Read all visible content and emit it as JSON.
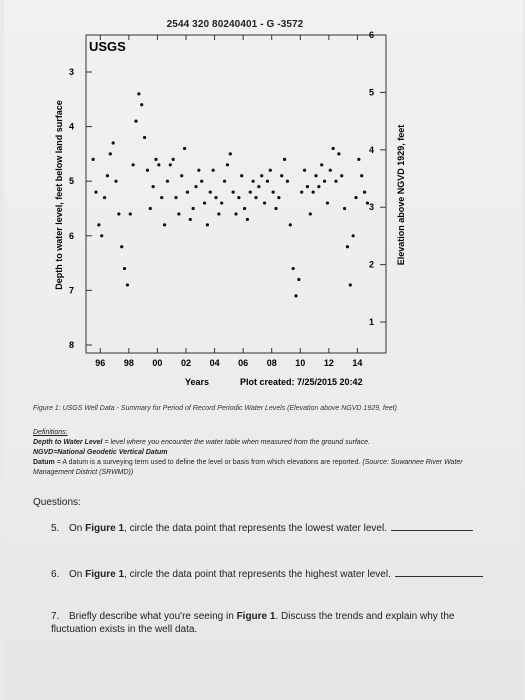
{
  "header": {
    "site_id": "2544 320 80240401 - G -3572"
  },
  "chart_data": {
    "type": "scatter",
    "logo": "USGS",
    "ylabel_left": "Depth to water level, feet below land surface",
    "ylabel_right": "Elevation above NGVD 1929, feet",
    "xlabel": "Years",
    "plot_created": "Plot created: 7/25/2015 20:42",
    "left_ticks": [
      "3",
      "4",
      "5",
      "6",
      "7",
      "8"
    ],
    "right_ticks": [
      "6",
      "5",
      "4",
      "3",
      "2",
      "1"
    ],
    "x_ticks": [
      "96",
      "98",
      "00",
      "02",
      "04",
      "06",
      "08",
      "10",
      "12",
      "14"
    ],
    "ylim_depth": [
      3,
      8
    ],
    "ylim_elevation": [
      0.6,
      6
    ],
    "xlim": [
      1995,
      2016
    ],
    "x": [
      1995.5,
      1995.7,
      1995.9,
      1996.1,
      1996.3,
      1996.5,
      1996.7,
      1996.9,
      1997.1,
      1997.3,
      1997.5,
      1997.7,
      1997.9,
      1998.1,
      1998.3,
      1998.5,
      1998.7,
      1998.9,
      1999.1,
      1999.3,
      1999.5,
      1999.7,
      1999.9,
      2000.1,
      2000.3,
      2000.5,
      2000.7,
      2000.9,
      2001.1,
      2001.3,
      2001.5,
      2001.7,
      2001.9,
      2002.1,
      2002.3,
      2002.5,
      2002.7,
      2002.9,
      2003.1,
      2003.3,
      2003.5,
      2003.7,
      2003.9,
      2004.1,
      2004.3,
      2004.5,
      2004.7,
      2004.9,
      2005.1,
      2005.3,
      2005.5,
      2005.7,
      2005.9,
      2006.1,
      2006.3,
      2006.5,
      2006.7,
      2006.9,
      2007.1,
      2007.3,
      2007.5,
      2007.7,
      2007.9,
      2008.1,
      2008.3,
      2008.5,
      2008.7,
      2008.9,
      2009.1,
      2009.3,
      2009.5,
      2009.7,
      2009.9,
      2010.1,
      2010.3,
      2010.5,
      2010.7,
      2010.9,
      2011.1,
      2011.3,
      2011.5,
      2011.7,
      2011.9,
      2012.1,
      2012.3,
      2012.5,
      2012.7,
      2012.9,
      2013.1,
      2013.3,
      2013.5,
      2013.7,
      2013.9,
      2014.1,
      2014.3,
      2014.5,
      2014.7
    ],
    "values": [
      4.6,
      5.2,
      5.8,
      6.0,
      5.3,
      4.9,
      4.5,
      4.3,
      5.0,
      5.6,
      6.2,
      6.6,
      6.9,
      5.6,
      4.7,
      3.9,
      3.4,
      3.6,
      4.2,
      4.8,
      5.5,
      5.1,
      4.6,
      4.7,
      5.3,
      5.8,
      5.0,
      4.7,
      4.6,
      5.3,
      5.6,
      4.9,
      4.4,
      5.2,
      5.7,
      5.5,
      5.1,
      4.8,
      5.0,
      5.4,
      5.8,
      5.2,
      4.8,
      5.3,
      5.6,
      5.4,
      5.0,
      4.7,
      4.5,
      5.2,
      5.6,
      5.3,
      4.9,
      5.5,
      5.7,
      5.2,
      5.0,
      5.3,
      5.1,
      4.9,
      5.4,
      5.0,
      4.8,
      5.2,
      5.5,
      5.3,
      4.9,
      4.6,
      5.0,
      5.8,
      6.6,
      7.1,
      6.8,
      5.2,
      4.8,
      5.1,
      5.6,
      5.2,
      4.9,
      5.1,
      4.7,
      5.0,
      5.4,
      4.8,
      4.4,
      5.0,
      4.5,
      4.9,
      5.5,
      6.2,
      6.9,
      6.0,
      5.3,
      4.6,
      4.9,
      5.2,
      5.4
    ]
  },
  "caption": "Figure 1: USGS Well Data - Summary for Period of Record Periodic Water Levels (Elevation above NGVD 1929, feet)",
  "definitions": {
    "heading": "Definitions:",
    "depth_term": "Depth to Water Level",
    "depth_def": " = level where you encounter the water table when measured from the ground surface.",
    "ngvd": "NGVD=National Geodetic Vertical Datum",
    "datum_term": "Datum",
    "datum_def": " = A datum is a surveying term used to define the level or basis from which elevations are reported. ",
    "datum_source": "(Source: Suwannee River Water Management District (SRWMD))"
  },
  "questions": {
    "title": "Questions:",
    "items": [
      {
        "num": "5.",
        "pre": "On ",
        "fig": "Figure 1",
        "post": ", circle the data point that represents the lowest water level."
      },
      {
        "num": "6.",
        "pre": "On ",
        "fig": "Figure 1",
        "post": ", circle the data point that represents the highest water level."
      },
      {
        "num": "7.",
        "pre": "Briefly describe what you're seeing in ",
        "fig": "Figure 1",
        "post": ". Discuss the trends and explain why the fluctuation exists in the well data."
      }
    ]
  }
}
